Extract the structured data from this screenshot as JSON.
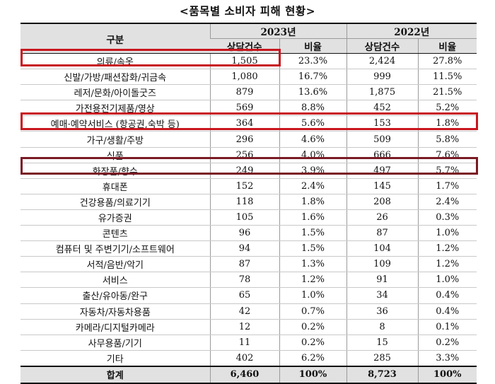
{
  "title": "<품목별 소비자 피해 현황>",
  "headers": {
    "category": "구분",
    "year_2023": "2023년",
    "year_2022": "2022년",
    "count": "상담건수",
    "ratio": "비율"
  },
  "rows": [
    {
      "category": "의류/속옷",
      "c2023": "1,505",
      "r2023": "23.3%",
      "c2022": "2,424",
      "r2022": "27.8%"
    },
    {
      "category": "신발/가방/패션잡화/귀금속",
      "c2023": "1,080",
      "r2023": "16.7%",
      "c2022": "999",
      "r2022": "11.5%"
    },
    {
      "category": "레저/문화/아이돌굿즈",
      "c2023": "879",
      "r2023": "13.6%",
      "c2022": "1,875",
      "r2022": "21.5%"
    },
    {
      "category": "가전용전기제품/영상",
      "c2023": "569",
      "r2023": "8.8%",
      "c2022": "452",
      "r2022": "5.2%"
    },
    {
      "category": "예매·예약서비스 (항공권,숙박 등)",
      "c2023": "364",
      "r2023": "5.6%",
      "c2022": "153",
      "r2022": "1.8%"
    },
    {
      "category": "가구/생활/주방",
      "c2023": "296",
      "r2023": "4.6%",
      "c2022": "509",
      "r2022": "5.8%"
    },
    {
      "category": "식품",
      "c2023": "256",
      "r2023": "4.0%",
      "c2022": "666",
      "r2022": "7.6%"
    },
    {
      "category": "화장품/향수",
      "c2023": "249",
      "r2023": "3.9%",
      "c2022": "497",
      "r2022": "5.7%"
    },
    {
      "category": "휴대폰",
      "c2023": "152",
      "r2023": "2.4%",
      "c2022": "145",
      "r2022": "1.7%"
    },
    {
      "category": "건강용품/의료기기",
      "c2023": "118",
      "r2023": "1.8%",
      "c2022": "208",
      "r2022": "2.4%"
    },
    {
      "category": "유가증권",
      "c2023": "105",
      "r2023": "1.6%",
      "c2022": "26",
      "r2022": "0.3%"
    },
    {
      "category": "콘텐츠",
      "c2023": "96",
      "r2023": "1.5%",
      "c2022": "87",
      "r2022": "1.0%"
    },
    {
      "category": "컴퓨터 및 주변기기/소프트웨어",
      "c2023": "94",
      "r2023": "1.5%",
      "c2022": "104",
      "r2022": "1.2%"
    },
    {
      "category": "서적/음반/악기",
      "c2023": "87",
      "r2023": "1.3%",
      "c2022": "109",
      "r2022": "1.2%"
    },
    {
      "category": "서비스",
      "c2023": "78",
      "r2023": "1.2%",
      "c2022": "91",
      "r2022": "1.0%"
    },
    {
      "category": "출산/유아동/완구",
      "c2023": "65",
      "r2023": "1.0%",
      "c2022": "34",
      "r2022": "0.4%"
    },
    {
      "category": "자동차/자동차용품",
      "c2023": "42",
      "r2023": "0.7%",
      "c2022": "36",
      "r2022": "0.4%"
    },
    {
      "category": "카메라/디지털카메라",
      "c2023": "12",
      "r2023": "0.2%",
      "c2022": "8",
      "r2022": "0.1%"
    },
    {
      "category": "사무용품/기기",
      "c2023": "11",
      "r2023": "0.2%",
      "c2022": "15",
      "r2022": "0.2%"
    },
    {
      "category": "기타",
      "c2023": "402",
      "r2023": "6.2%",
      "c2022": "285",
      "r2022": "3.3%"
    }
  ],
  "total": {
    "category": "합계",
    "c2023": "6,460",
    "r2023": "100%",
    "c2022": "8,723",
    "r2022": "100%"
  },
  "highlight_colors": {
    "primary": "#c8161e",
    "dark": "#7a1a24",
    "row_fill": "#fff6d8"
  }
}
